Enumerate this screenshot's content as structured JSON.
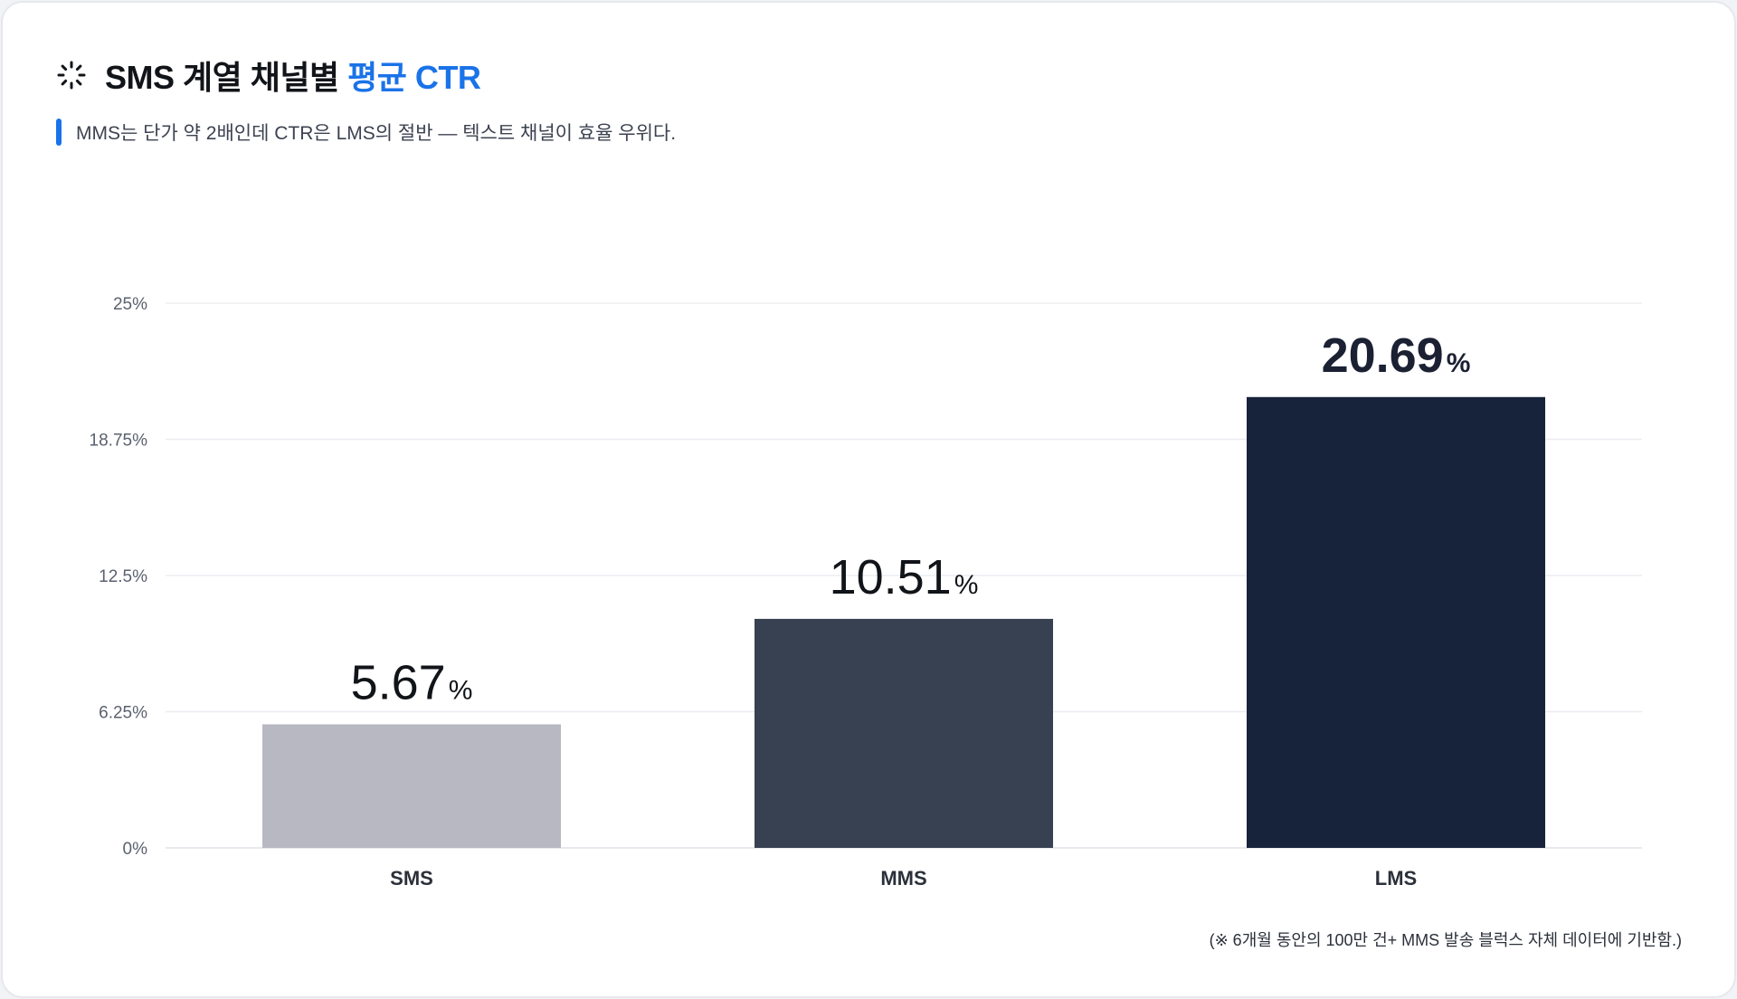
{
  "header": {
    "title_main": "SMS 계열 채널별",
    "title_accent": "평균 CTR",
    "subtitle": "MMS는 단가 약 2배인데 CTR은 LMS의 절반 — 텍스트 채널이 효율 우위다."
  },
  "footnote": "(※ 6개월 동안의 100만 건+ MMS 발송 블럭스 자체 데이터에 기반함.)",
  "colors": {
    "accent": "#1a73e8",
    "grid": "#ebedf1",
    "tick": "#5b6170",
    "category": "#2b303a",
    "value_dark": "#1b2133",
    "value_light": "#111418"
  },
  "chart_data": {
    "type": "bar",
    "categories": [
      "SMS",
      "MMS",
      "LMS"
    ],
    "values": [
      5.67,
      10.51,
      20.69
    ],
    "value_labels": [
      "5.67",
      "10.51",
      "20.69"
    ],
    "value_unit": "%",
    "bar_colors": [
      "#b8b8c2",
      "#374151",
      "#17233b"
    ],
    "ylim": [
      0,
      25
    ],
    "yticks": [
      0,
      6.25,
      12.5,
      18.75,
      25
    ],
    "ytick_labels": [
      "0%",
      "6.25%",
      "12.5%",
      "18.75%",
      "25%"
    ],
    "grid": true,
    "legend": "none"
  }
}
